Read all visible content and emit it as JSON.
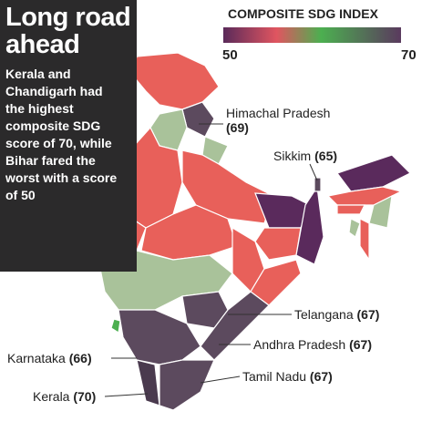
{
  "header": {
    "title": "Long road ahead",
    "description": "Kerala and Chandigarh had the highest composite SDG score of 70, while Bihar fared the worst with a score of 50"
  },
  "legend": {
    "title": "COMPOSITE SDG INDEX",
    "min": 50,
    "max": 70
  },
  "callouts": [
    {
      "state": "Himachal Pradesh",
      "score": "(69)"
    },
    {
      "state": "Sikkim",
      "score": "(65)"
    },
    {
      "state": "Telangana",
      "score": "(67)"
    },
    {
      "state": "Andhra Pradesh",
      "score": "(67)"
    },
    {
      "state": "Karnataka",
      "score": "(66)"
    },
    {
      "state": "Kerala",
      "score": "(70)"
    },
    {
      "state": "Tamil Nadu",
      "score": "(67)"
    }
  ]
}
